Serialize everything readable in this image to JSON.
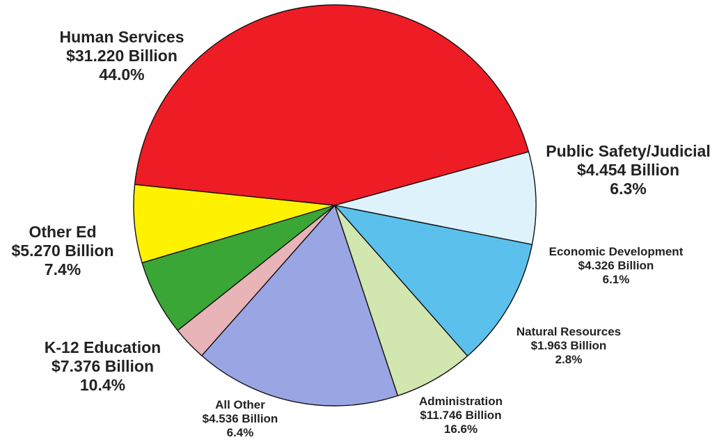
{
  "chart_data": {
    "type": "pie",
    "title": "",
    "slices": [
      {
        "label": "Human Services",
        "amount": "$31.220 Billion",
        "percent": "44.0%",
        "value": 31.22,
        "color": "#ee1c24"
      },
      {
        "label": "Public Safety/Judicial",
        "amount": "$4.454 Billion",
        "percent": "6.3%",
        "value": 4.454,
        "color": "#fff200"
      },
      {
        "label": "Economic Development",
        "amount": "$4.326 Billion",
        "percent": "6.1%",
        "value": 4.326,
        "color": "#3aa635"
      },
      {
        "label": "Natural Resources",
        "amount": "$1.963 Billion",
        "percent": "2.8%",
        "value": 1.963,
        "color": "#e8b4b8"
      },
      {
        "label": "Administration",
        "amount": "$11.746 Billion",
        "percent": "16.6%",
        "value": 11.746,
        "color": "#9aa6e4"
      },
      {
        "label": "All Other",
        "amount": "$4.536 Billion",
        "percent": "6.4%",
        "value": 4.536,
        "color": "#d2e6b0"
      },
      {
        "label": "K-12 Education",
        "amount": "$7.376 Billion",
        "percent": "10.4%",
        "value": 7.376,
        "color": "#5bc0ec"
      },
      {
        "label": "Other Ed",
        "amount": "$5.270 Billion",
        "percent": "7.4%",
        "value": 5.27,
        "color": "#def2fc"
      }
    ]
  }
}
